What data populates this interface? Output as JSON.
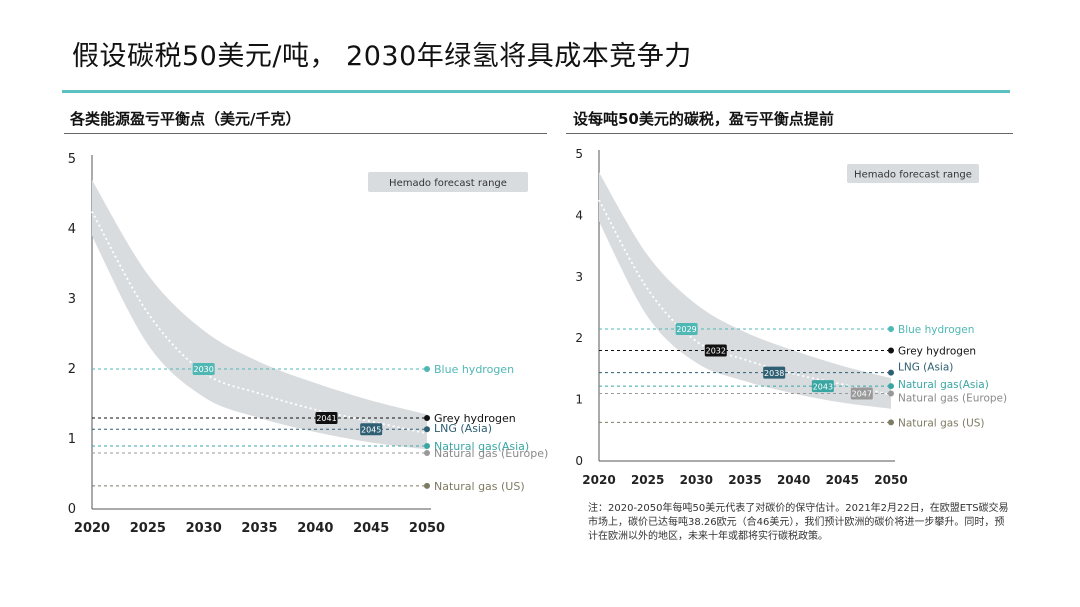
{
  "title": "假设碳税50美元/吨， 2030年绿氢将具成本竞争力",
  "colors": {
    "accent": "#5bc0bf",
    "band": "#d9dcdf",
    "blue_hydrogen": "#4fb8b4",
    "grey_hydrogen": "#111111",
    "lng": "#2f5f73",
    "gas_asia": "#3aa6a4",
    "gas_europe": "#999999",
    "gas_us": "#7d7b63"
  },
  "chart_data": [
    {
      "type": "line",
      "title": "各类能源盈亏平衡点（美元/千克）",
      "x": [
        2020,
        2025,
        2030,
        2035,
        2040,
        2045,
        2050
      ],
      "xlim": [
        2020,
        2050
      ],
      "ylim": [
        0,
        5
      ],
      "yticks": [
        0,
        1,
        2,
        3,
        4,
        5
      ],
      "legend": "Hemado forecast range",
      "band_lower": [
        3.9,
        2.35,
        1.6,
        1.3,
        1.1,
        0.95,
        0.85
      ],
      "band_upper": [
        4.7,
        3.35,
        2.55,
        2.1,
        1.8,
        1.55,
        1.35
      ],
      "forecast": [
        4.25,
        2.8,
        1.95,
        1.65,
        1.42,
        1.25,
        1.08
      ],
      "references": [
        {
          "name": "Blue hydrogen",
          "value": 2.0,
          "color_key": "blue_hydrogen",
          "crossing_label": "2030",
          "crossing_year": 2030
        },
        {
          "name": "Grey hydrogen",
          "value": 1.3,
          "color_key": "grey_hydrogen",
          "crossing_label": "2041",
          "crossing_year": 2041
        },
        {
          "name": "LNG (Asia)",
          "value": 1.14,
          "color_key": "lng",
          "crossing_label": "2045",
          "crossing_year": 2045
        },
        {
          "name": "Natural gas(Asia)",
          "value": 0.9,
          "color_key": "gas_asia"
        },
        {
          "name": "Natural gas (Europe)",
          "value": 0.8,
          "color_key": "gas_europe"
        },
        {
          "name": "Natural gas (US)",
          "value": 0.33,
          "color_key": "gas_us"
        }
      ]
    },
    {
      "type": "line",
      "title": "设每吨50美元的碳税，盈亏平衡点提前",
      "x": [
        2020,
        2025,
        2030,
        2035,
        2040,
        2045,
        2050
      ],
      "xlim": [
        2020,
        2050
      ],
      "ylim": [
        0,
        5
      ],
      "yticks": [
        0,
        1,
        2,
        3,
        4,
        5
      ],
      "legend": "Hemado forecast range",
      "band_lower": [
        3.9,
        2.35,
        1.6,
        1.3,
        1.1,
        0.95,
        0.85
      ],
      "band_upper": [
        4.7,
        3.35,
        2.55,
        2.1,
        1.8,
        1.55,
        1.35
      ],
      "forecast": [
        4.25,
        2.8,
        1.95,
        1.65,
        1.42,
        1.25,
        1.08
      ],
      "references": [
        {
          "name": "Blue hydrogen",
          "value": 2.15,
          "color_key": "blue_hydrogen",
          "crossing_label": "2029",
          "crossing_year": 2029
        },
        {
          "name": "Grey hydrogen",
          "value": 1.8,
          "color_key": "grey_hydrogen",
          "crossing_label": "2032",
          "crossing_year": 2032
        },
        {
          "name": "LNG (Asia)",
          "value": 1.44,
          "color_key": "lng",
          "crossing_label": "2038",
          "crossing_year": 2038
        },
        {
          "name": "Natural gas(Asia)",
          "value": 1.22,
          "color_key": "gas_asia",
          "crossing_label": "2043",
          "crossing_year": 2043
        },
        {
          "name": "Natural gas (Europe)",
          "value": 1.1,
          "color_key": "gas_europe",
          "crossing_label": "2047",
          "crossing_year": 2047
        },
        {
          "name": "Natural gas (US)",
          "value": 0.63,
          "color_key": "gas_us"
        }
      ]
    }
  ],
  "note": "注：2020-2050年每吨50美元代表了对碳价的保守估计。2021年2月22日，在欧盟ETS碳交易市场上，碳价已达每吨38.26欧元（合46美元），我们预计欧洲的碳价将进一步攀升。同时，预计在欧洲以外的地区，未来十年或都将实行碳税政策。"
}
